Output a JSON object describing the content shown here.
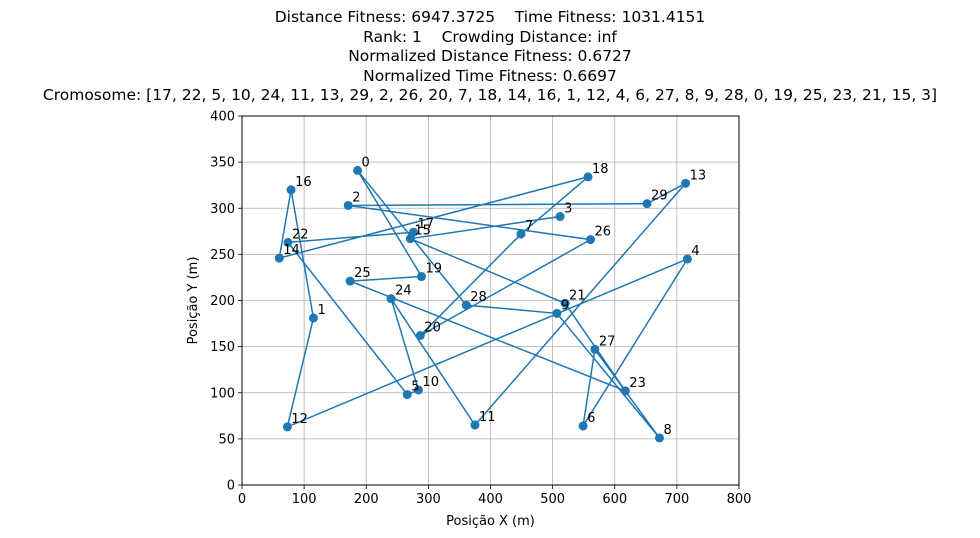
{
  "titles": [
    "Distance Fitness: 6947.3725    Time Fitness: 1031.4151",
    "Rank: 1    Crowding Distance: inf",
    "Normalized Distance Fitness: 0.6727",
    "Normalized Time Fitness: 0.6697",
    "Cromosome: [17, 22, 5, 10, 24, 11, 13, 29, 2, 26, 20, 7, 18, 14, 16, 1, 12, 4, 6, 27, 8, 9, 28, 0, 19, 25, 23, 21, 15, 3]"
  ],
  "chart_data": {
    "type": "line",
    "xlabel": "Posição X (m)",
    "ylabel": "Posição Y (m)",
    "xlim": [
      0,
      800
    ],
    "ylim": [
      0,
      400
    ],
    "xticks": [
      0,
      100,
      200,
      300,
      400,
      500,
      600,
      700,
      800
    ],
    "yticks": [
      0,
      50,
      100,
      150,
      200,
      250,
      300,
      350,
      400
    ],
    "grid": true,
    "color": "#1f77b4",
    "markers": true,
    "points": [
      {
        "id": "0",
        "x": 186,
        "y": 341
      },
      {
        "id": "1",
        "x": 115,
        "y": 181
      },
      {
        "id": "2",
        "x": 171,
        "y": 303
      },
      {
        "id": "3",
        "x": 512,
        "y": 291
      },
      {
        "id": "4",
        "x": 717,
        "y": 245
      },
      {
        "id": "5",
        "x": 266,
        "y": 98
      },
      {
        "id": "6",
        "x": 549,
        "y": 64
      },
      {
        "id": "7",
        "x": 449,
        "y": 272
      },
      {
        "id": "8",
        "x": 672,
        "y": 51
      },
      {
        "id": "9",
        "x": 507,
        "y": 186
      },
      {
        "id": "10",
        "x": 284,
        "y": 103
      },
      {
        "id": "11",
        "x": 375,
        "y": 65
      },
      {
        "id": "12",
        "x": 73,
        "y": 63
      },
      {
        "id": "13",
        "x": 714,
        "y": 327
      },
      {
        "id": "14",
        "x": 60,
        "y": 246
      },
      {
        "id": "15",
        "x": 271,
        "y": 267
      },
      {
        "id": "16",
        "x": 79,
        "y": 320
      },
      {
        "id": "17",
        "x": 276,
        "y": 274
      },
      {
        "id": "18",
        "x": 557,
        "y": 334
      },
      {
        "id": "19",
        "x": 289,
        "y": 226
      },
      {
        "id": "20",
        "x": 287,
        "y": 162
      },
      {
        "id": "21",
        "x": 520,
        "y": 197
      },
      {
        "id": "22",
        "x": 74,
        "y": 263
      },
      {
        "id": "23",
        "x": 617,
        "y": 102
      },
      {
        "id": "24",
        "x": 240,
        "y": 202
      },
      {
        "id": "25",
        "x": 174,
        "y": 221
      },
      {
        "id": "26",
        "x": 561,
        "y": 266
      },
      {
        "id": "27",
        "x": 568,
        "y": 147
      },
      {
        "id": "28",
        "x": 361,
        "y": 195
      },
      {
        "id": "29",
        "x": 652,
        "y": 305
      }
    ],
    "route": [
      17,
      22,
      5,
      10,
      24,
      11,
      13,
      29,
      2,
      26,
      20,
      7,
      18,
      14,
      16,
      1,
      12,
      4,
      6,
      27,
      8,
      9,
      28,
      0,
      19,
      25,
      23,
      21,
      15,
      3
    ]
  }
}
